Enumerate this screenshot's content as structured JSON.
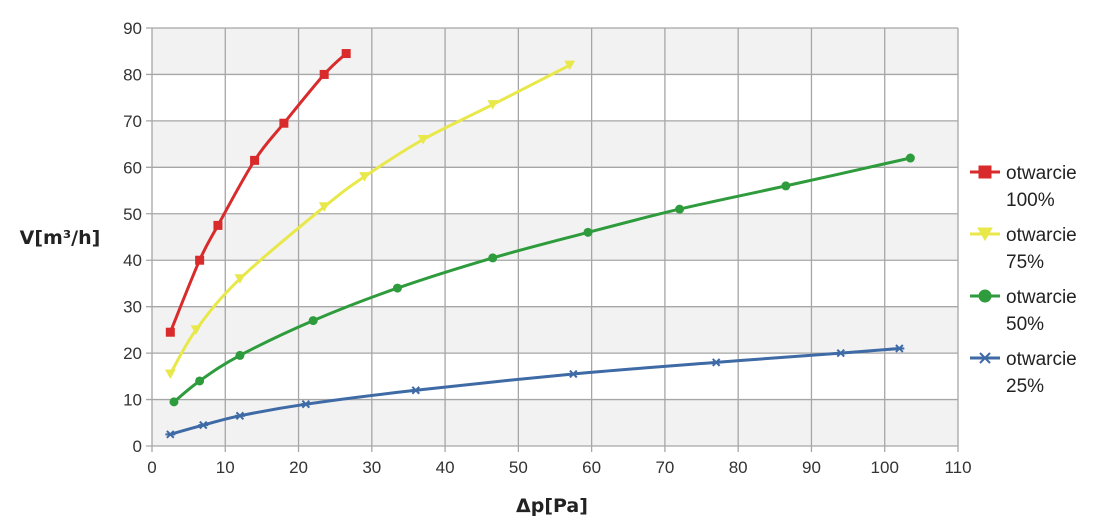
{
  "chart_data": {
    "type": "line",
    "xlabel": "Δp[Pa]",
    "ylabel": "V[m³/h]",
    "xlim": [
      0,
      110
    ],
    "ylim": [
      0,
      90
    ],
    "x_ticks": [
      "0",
      "10",
      "20",
      "30",
      "40",
      "50",
      "60",
      "70",
      "80",
      "90",
      "100",
      "110"
    ],
    "y_ticks": [
      "0",
      "10",
      "20",
      "30",
      "40",
      "50",
      "60",
      "70",
      "80",
      "90"
    ],
    "grid": true,
    "legend_position": "right",
    "series": [
      {
        "name": "otwarcie 100%",
        "label_lines": [
          "otwarcie",
          "100%"
        ],
        "color": "#d92b2b",
        "marker": "square",
        "x": [
          2.5,
          6.5,
          9,
          14,
          18,
          23.5,
          26.5
        ],
        "y": [
          24.5,
          40,
          47.5,
          61.5,
          69.5,
          80,
          84.5
        ]
      },
      {
        "name": "otwarcie 75%",
        "label_lines": [
          "otwarcie",
          "75%"
        ],
        "color": "#e8e84a",
        "marker": "triangle-down",
        "x": [
          2.5,
          6,
          12,
          23.5,
          29,
          37,
          46.5,
          57
        ],
        "y": [
          15.5,
          25,
          36,
          51.5,
          58,
          66,
          73.5,
          82
        ]
      },
      {
        "name": "otwarcie 50%",
        "label_lines": [
          "otwarcie",
          "50%"
        ],
        "color": "#2e9b3c",
        "marker": "circle",
        "x": [
          3,
          6.5,
          12,
          22,
          33.5,
          46.5,
          59.5,
          72,
          86.5,
          103.5
        ],
        "y": [
          9.5,
          14,
          19.5,
          27,
          34,
          40.5,
          46,
          51,
          56,
          62
        ]
      },
      {
        "name": "otwarcie 25%",
        "label_lines": [
          "otwarcie",
          "25%"
        ],
        "color": "#3e6aa6",
        "marker": "star",
        "x": [
          2.5,
          7,
          12,
          21,
          36,
          57.5,
          77,
          94,
          102
        ],
        "y": [
          2.5,
          4.5,
          6.5,
          9,
          12,
          15.5,
          18,
          20,
          21
        ]
      }
    ]
  }
}
